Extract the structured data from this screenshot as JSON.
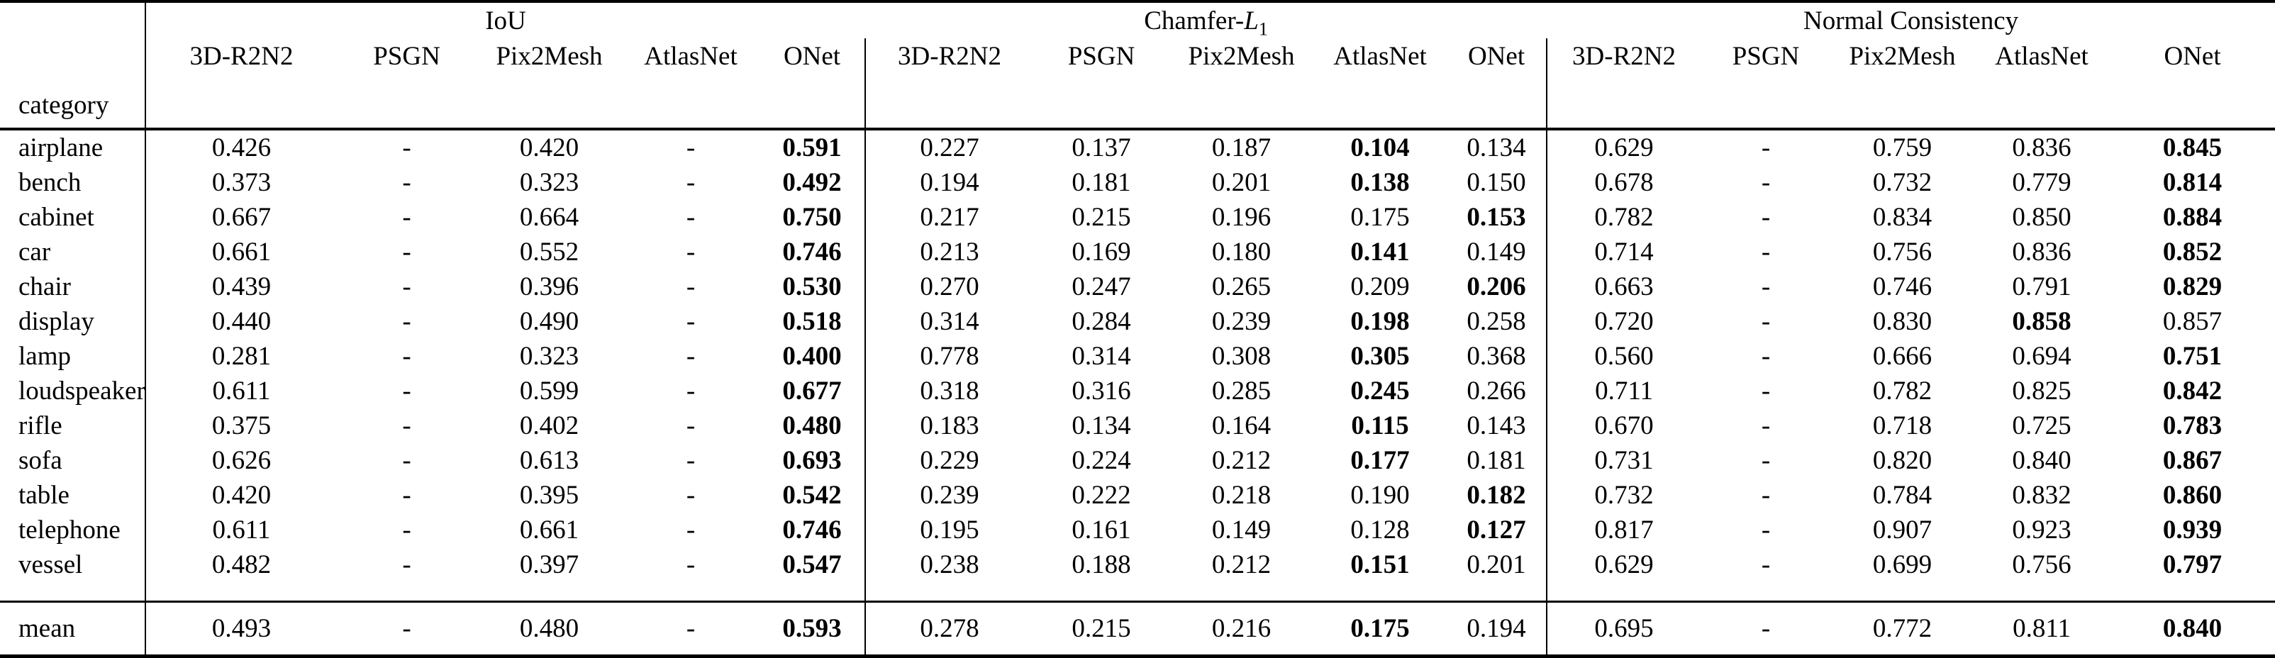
{
  "table": {
    "corner_label": "category",
    "methods": [
      "3D-R2N2",
      "PSGN",
      "Pix2Mesh",
      "AtlasNet",
      "ONet"
    ],
    "groups": [
      {
        "name": "IoU",
        "parts": [
          {
            "text": "IoU"
          }
        ]
      },
      {
        "name": "Chamfer-L1",
        "parts": [
          {
            "text": "Chamfer-"
          },
          {
            "text": "L",
            "style": "italic"
          },
          {
            "text": "1",
            "style": "sub"
          }
        ]
      },
      {
        "name": "Normal Consistency",
        "parts": [
          {
            "text": "Normal Consistency"
          }
        ]
      }
    ],
    "rows": [
      {
        "category": "airplane",
        "iou": {
          "values": [
            "0.426",
            "-",
            "0.420",
            "-",
            "0.591"
          ],
          "bold": 4
        },
        "chamfer": {
          "values": [
            "0.227",
            "0.137",
            "0.187",
            "0.104",
            "0.134"
          ],
          "bold": 3
        },
        "normal": {
          "values": [
            "0.629",
            "-",
            "0.759",
            "0.836",
            "0.845"
          ],
          "bold": 4
        }
      },
      {
        "category": "bench",
        "iou": {
          "values": [
            "0.373",
            "-",
            "0.323",
            "-",
            "0.492"
          ],
          "bold": 4
        },
        "chamfer": {
          "values": [
            "0.194",
            "0.181",
            "0.201",
            "0.138",
            "0.150"
          ],
          "bold": 3
        },
        "normal": {
          "values": [
            "0.678",
            "-",
            "0.732",
            "0.779",
            "0.814"
          ],
          "bold": 4
        }
      },
      {
        "category": "cabinet",
        "iou": {
          "values": [
            "0.667",
            "-",
            "0.664",
            "-",
            "0.750"
          ],
          "bold": 4
        },
        "chamfer": {
          "values": [
            "0.217",
            "0.215",
            "0.196",
            "0.175",
            "0.153"
          ],
          "bold": 4
        },
        "normal": {
          "values": [
            "0.782",
            "-",
            "0.834",
            "0.850",
            "0.884"
          ],
          "bold": 4
        }
      },
      {
        "category": "car",
        "iou": {
          "values": [
            "0.661",
            "-",
            "0.552",
            "-",
            "0.746"
          ],
          "bold": 4
        },
        "chamfer": {
          "values": [
            "0.213",
            "0.169",
            "0.180",
            "0.141",
            "0.149"
          ],
          "bold": 3
        },
        "normal": {
          "values": [
            "0.714",
            "-",
            "0.756",
            "0.836",
            "0.852"
          ],
          "bold": 4
        }
      },
      {
        "category": "chair",
        "iou": {
          "values": [
            "0.439",
            "-",
            "0.396",
            "-",
            "0.530"
          ],
          "bold": 4
        },
        "chamfer": {
          "values": [
            "0.270",
            "0.247",
            "0.265",
            "0.209",
            "0.206"
          ],
          "bold": 4
        },
        "normal": {
          "values": [
            "0.663",
            "-",
            "0.746",
            "0.791",
            "0.829"
          ],
          "bold": 4
        }
      },
      {
        "category": "display",
        "iou": {
          "values": [
            "0.440",
            "-",
            "0.490",
            "-",
            "0.518"
          ],
          "bold": 4
        },
        "chamfer": {
          "values": [
            "0.314",
            "0.284",
            "0.239",
            "0.198",
            "0.258"
          ],
          "bold": 3
        },
        "normal": {
          "values": [
            "0.720",
            "-",
            "0.830",
            "0.858",
            "0.857"
          ],
          "bold": 3
        }
      },
      {
        "category": "lamp",
        "iou": {
          "values": [
            "0.281",
            "-",
            "0.323",
            "-",
            "0.400"
          ],
          "bold": 4
        },
        "chamfer": {
          "values": [
            "0.778",
            "0.314",
            "0.308",
            "0.305",
            "0.368"
          ],
          "bold": 3
        },
        "normal": {
          "values": [
            "0.560",
            "-",
            "0.666",
            "0.694",
            "0.751"
          ],
          "bold": 4
        }
      },
      {
        "category": "loudspeaker",
        "iou": {
          "values": [
            "0.611",
            "-",
            "0.599",
            "-",
            "0.677"
          ],
          "bold": 4
        },
        "chamfer": {
          "values": [
            "0.318",
            "0.316",
            "0.285",
            "0.245",
            "0.266"
          ],
          "bold": 3
        },
        "normal": {
          "values": [
            "0.711",
            "-",
            "0.782",
            "0.825",
            "0.842"
          ],
          "bold": 4
        }
      },
      {
        "category": "rifle",
        "iou": {
          "values": [
            "0.375",
            "-",
            "0.402",
            "-",
            "0.480"
          ],
          "bold": 4
        },
        "chamfer": {
          "values": [
            "0.183",
            "0.134",
            "0.164",
            "0.115",
            "0.143"
          ],
          "bold": 3
        },
        "normal": {
          "values": [
            "0.670",
            "-",
            "0.718",
            "0.725",
            "0.783"
          ],
          "bold": 4
        }
      },
      {
        "category": "sofa",
        "iou": {
          "values": [
            "0.626",
            "-",
            "0.613",
            "-",
            "0.693"
          ],
          "bold": 4
        },
        "chamfer": {
          "values": [
            "0.229",
            "0.224",
            "0.212",
            "0.177",
            "0.181"
          ],
          "bold": 3
        },
        "normal": {
          "values": [
            "0.731",
            "-",
            "0.820",
            "0.840",
            "0.867"
          ],
          "bold": 4
        }
      },
      {
        "category": "table",
        "iou": {
          "values": [
            "0.420",
            "-",
            "0.395",
            "-",
            "0.542"
          ],
          "bold": 4
        },
        "chamfer": {
          "values": [
            "0.239",
            "0.222",
            "0.218",
            "0.190",
            "0.182"
          ],
          "bold": 4
        },
        "normal": {
          "values": [
            "0.732",
            "-",
            "0.784",
            "0.832",
            "0.860"
          ],
          "bold": 4
        }
      },
      {
        "category": "telephone",
        "iou": {
          "values": [
            "0.611",
            "-",
            "0.661",
            "-",
            "0.746"
          ],
          "bold": 4
        },
        "chamfer": {
          "values": [
            "0.195",
            "0.161",
            "0.149",
            "0.128",
            "0.127"
          ],
          "bold": 4
        },
        "normal": {
          "values": [
            "0.817",
            "-",
            "0.907",
            "0.923",
            "0.939"
          ],
          "bold": 4
        }
      },
      {
        "category": "vessel",
        "iou": {
          "values": [
            "0.482",
            "-",
            "0.397",
            "-",
            "0.547"
          ],
          "bold": 4
        },
        "chamfer": {
          "values": [
            "0.238",
            "0.188",
            "0.212",
            "0.151",
            "0.201"
          ],
          "bold": 3
        },
        "normal": {
          "values": [
            "0.629",
            "-",
            "0.699",
            "0.756",
            "0.797"
          ],
          "bold": 4
        }
      }
    ],
    "mean_row": {
      "category": "mean",
      "iou": {
        "values": [
          "0.493",
          "-",
          "0.480",
          "-",
          "0.593"
        ],
        "bold": 4
      },
      "chamfer": {
        "values": [
          "0.278",
          "0.215",
          "0.216",
          "0.175",
          "0.194"
        ],
        "bold": 3
      },
      "normal": {
        "values": [
          "0.695",
          "-",
          "0.772",
          "0.811",
          "0.840"
        ],
        "bold": 4
      }
    }
  }
}
